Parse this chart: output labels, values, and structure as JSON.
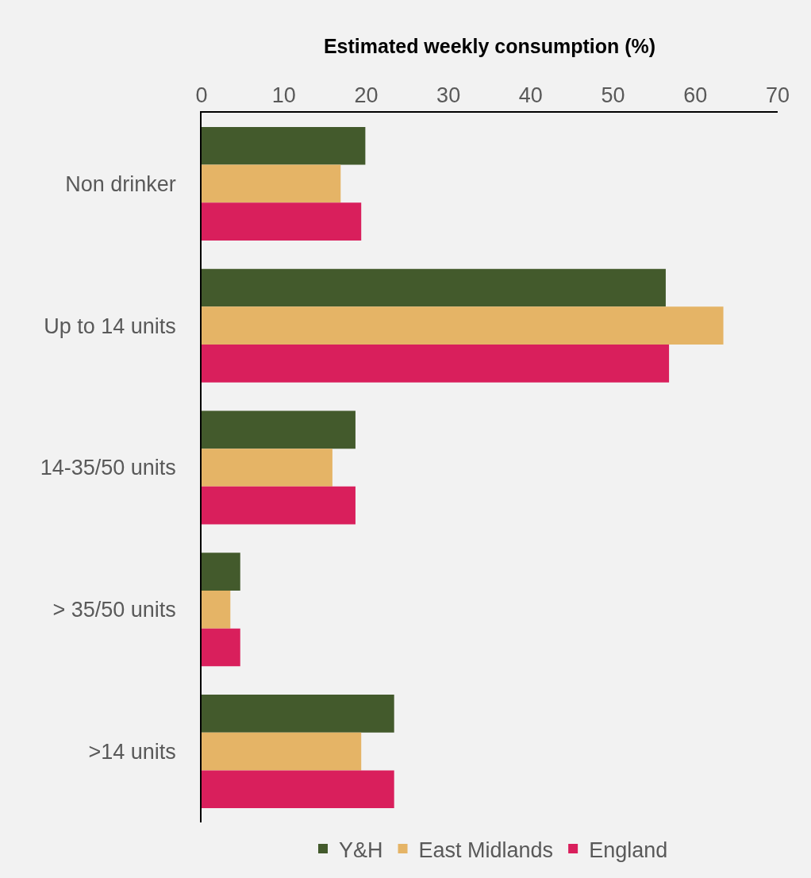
{
  "chart_data": {
    "type": "bar",
    "orientation": "horizontal",
    "xlabel": "Estimated weekly consumption (%)",
    "categories": [
      "Non drinker",
      "Up to 14 units",
      "14-35/50 units",
      "> 35/50 units",
      ">14 units"
    ],
    "series": [
      {
        "name": "Y&H",
        "color": "#435a2c",
        "values": [
          19.9,
          56.4,
          18.7,
          4.7,
          23.4
        ]
      },
      {
        "name": "East Midlands",
        "color": "#e5b466",
        "values": [
          16.9,
          63.4,
          15.9,
          3.5,
          19.4
        ]
      },
      {
        "name": "England",
        "color": "#d91f5c",
        "values": [
          19.4,
          56.8,
          18.7,
          4.7,
          23.4
        ]
      }
    ],
    "xlim": [
      0,
      70
    ],
    "xticks": [
      0,
      10,
      20,
      30,
      40,
      50,
      60,
      70
    ],
    "grid": false,
    "legend": "bottom"
  }
}
